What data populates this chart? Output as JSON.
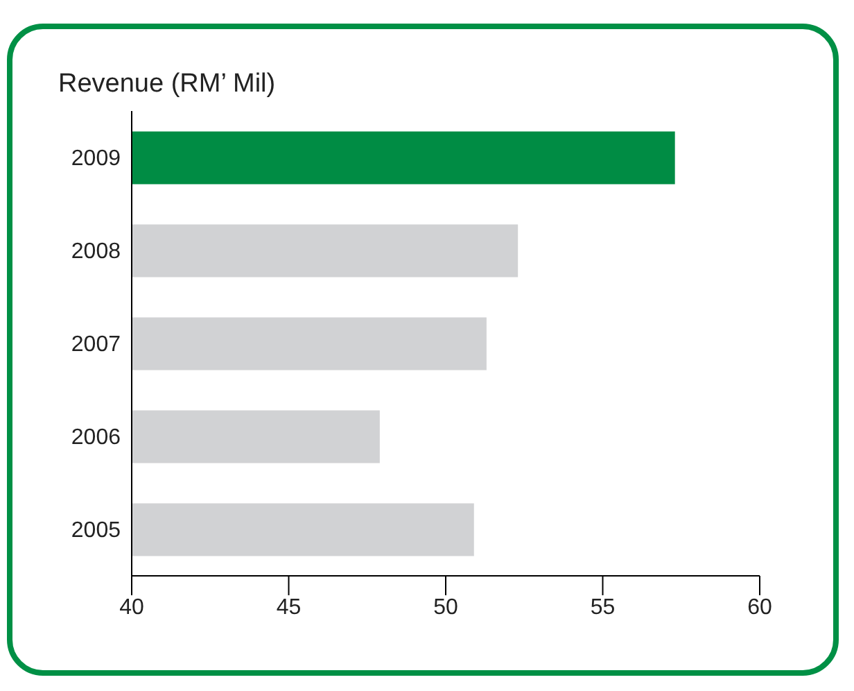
{
  "chart_data": {
    "type": "bar",
    "orientation": "horizontal",
    "title": "Revenue (RM’ Mil)",
    "categories": [
      "2009",
      "2008",
      "2007",
      "2006",
      "2005"
    ],
    "values": [
      57.3,
      52.3,
      51.3,
      47.9,
      50.9
    ],
    "colors": [
      "#008c44",
      "#d1d2d4",
      "#d1d2d4",
      "#d1d2d4",
      "#d1d2d4"
    ],
    "xlim": [
      40,
      60
    ],
    "xticks": [
      40,
      45,
      50,
      55,
      60
    ],
    "grid": false
  }
}
